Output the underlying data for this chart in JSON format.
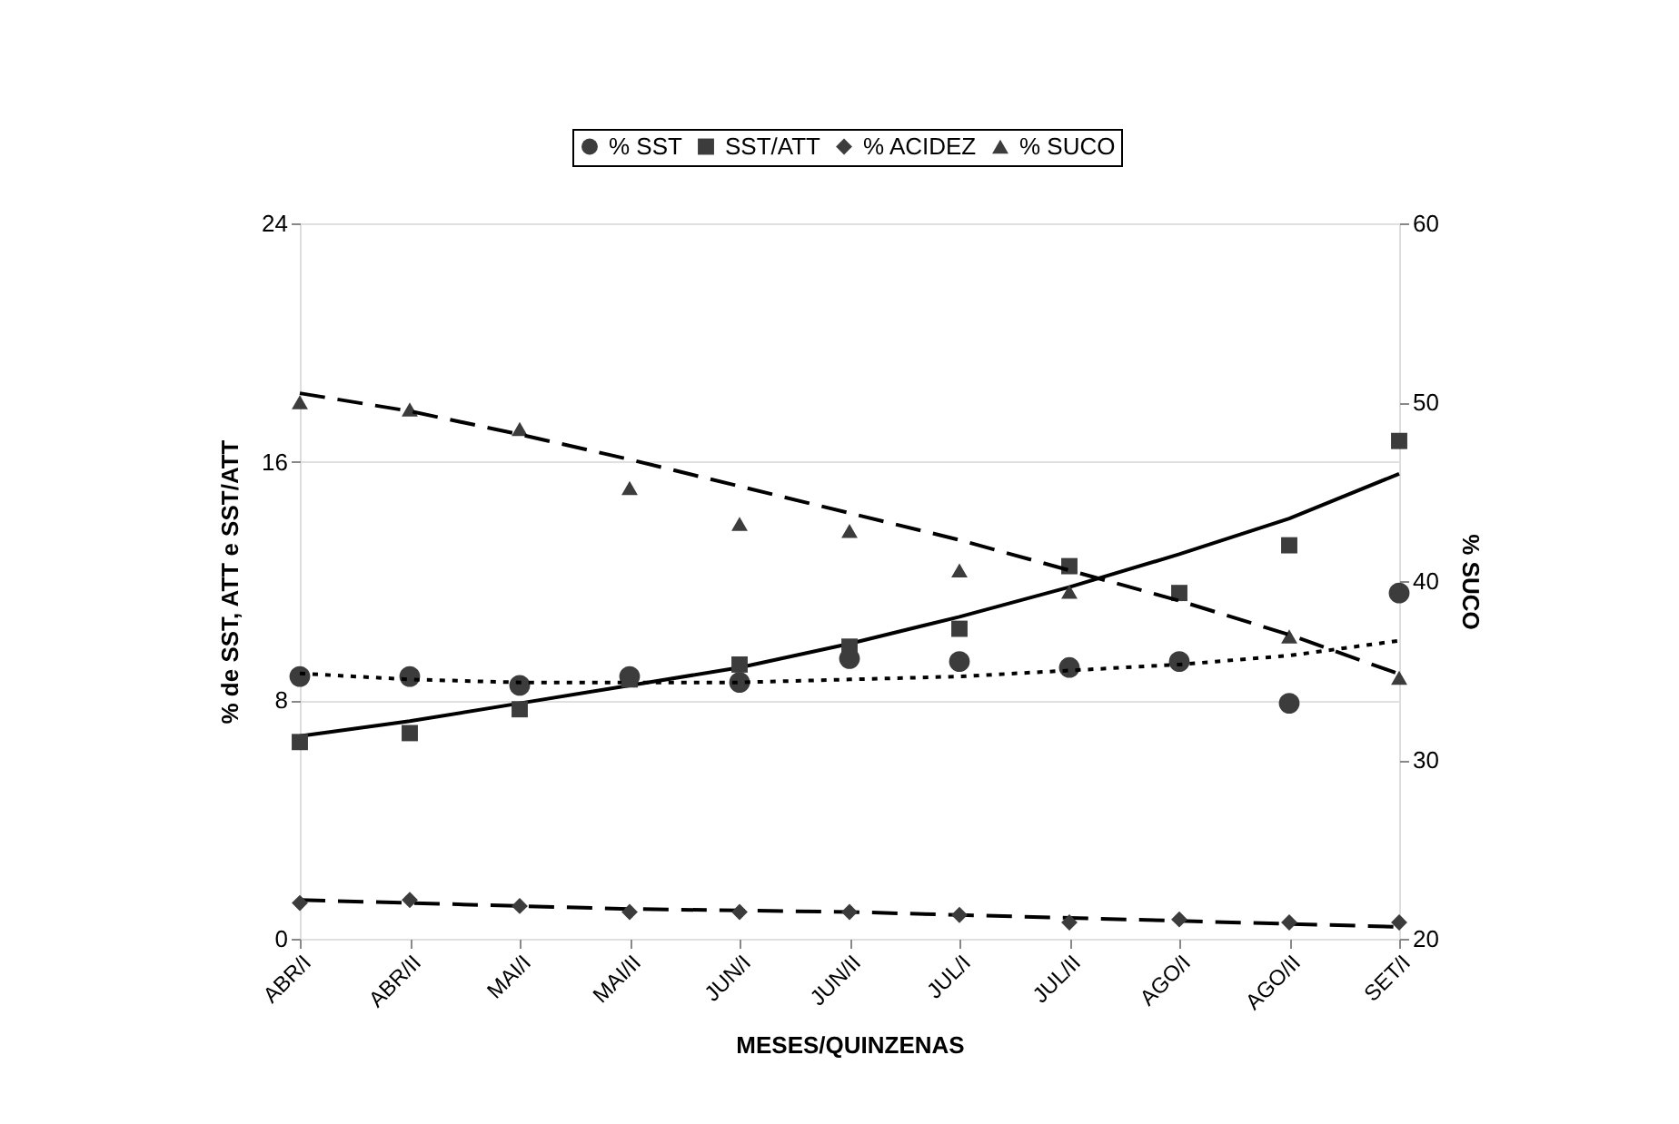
{
  "chart_data": {
    "type": "scatter",
    "xlabel": "MESES/QUINZENAS",
    "ylabel": "% de SST, ATT e SST/ATT",
    "y2label": "% SUCO",
    "categories": [
      "ABR/I",
      "ABR/II",
      "MAI/I",
      "MAI/II",
      "JUN/I",
      "JUN/II",
      "JUL/I",
      "JUL/II",
      "AGO/I",
      "AGO/II",
      "SET/I"
    ],
    "series": [
      {
        "name": "% SST",
        "marker": "circle",
        "color": "#3c3c3c",
        "values": [
          8.8,
          8.8,
          8.5,
          8.8,
          8.6,
          9.4,
          9.3,
          9.1,
          9.3,
          7.9,
          11.6
        ]
      },
      {
        "name": "SST/ATT",
        "marker": "square",
        "color": "#3c3c3c",
        "values": [
          6.6,
          6.9,
          7.7,
          8.7,
          9.2,
          9.8,
          10.4,
          12.5,
          11.6,
          13.2,
          16.7
        ]
      },
      {
        "name": "% ACIDEZ",
        "marker": "diamond",
        "color": "#3c3c3c",
        "values": [
          1.2,
          1.3,
          1.1,
          0.9,
          0.9,
          0.9,
          0.8,
          0.55,
          0.65,
          0.55,
          0.55
        ]
      },
      {
        "name": "% SUCO",
        "marker": "triangle",
        "color": "#3c3c3c",
        "axis": "y2",
        "values": [
          50.0,
          49.6,
          48.5,
          45.2,
          43.2,
          42.8,
          40.6,
          39.4,
          null,
          36.9,
          34.6
        ]
      },
      {
        "type": "line",
        "line_style": "dotted",
        "marker": "none",
        "color": "#000000",
        "values": [
          8.9,
          8.7,
          8.6,
          8.6,
          8.6,
          8.7,
          8.8,
          9.0,
          9.2,
          9.5,
          10.0
        ]
      },
      {
        "type": "line",
        "line_style": "solid",
        "marker": "none",
        "color": "#000000",
        "values": [
          6.8,
          7.3,
          7.9,
          8.5,
          9.1,
          9.9,
          10.8,
          11.8,
          12.9,
          14.1,
          15.6
        ]
      },
      {
        "type": "line",
        "line_style": "dashed",
        "marker": "none",
        "color": "#000000",
        "values": [
          1.3,
          1.2,
          1.1,
          1.0,
          0.95,
          0.9,
          0.8,
          0.7,
          0.6,
          0.5,
          0.4
        ]
      },
      {
        "type": "line",
        "line_style": "dashed",
        "marker": "none",
        "color": "#000000",
        "axis": "y2",
        "values": [
          50.5,
          49.5,
          48.2,
          46.8,
          45.3,
          43.8,
          42.3,
          40.6,
          38.9,
          37.0,
          34.8
        ]
      }
    ],
    "ylim": [
      0,
      24
    ],
    "yticks": [
      0,
      8,
      16,
      24
    ],
    "y2lim": [
      20,
      60
    ],
    "y2ticks": [
      20,
      30,
      40,
      50,
      60
    ],
    "grid": "y",
    "legend": "top"
  }
}
